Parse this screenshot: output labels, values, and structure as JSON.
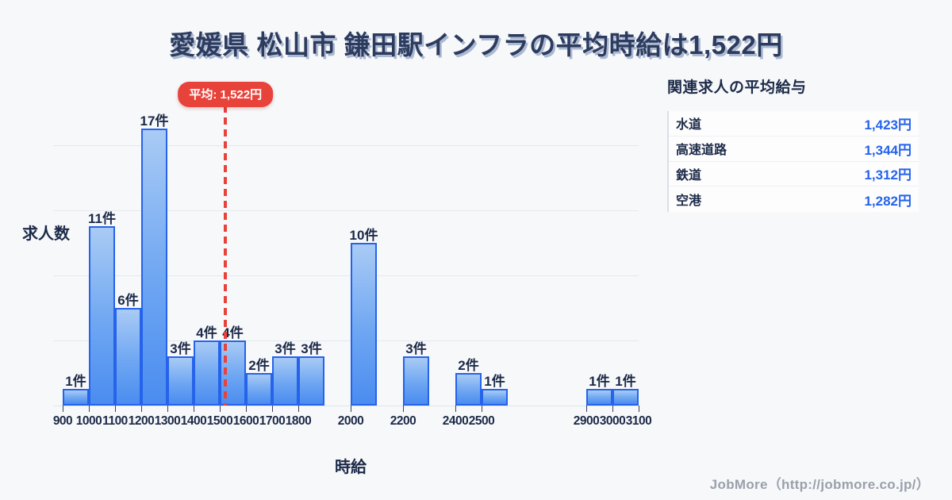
{
  "page": {
    "title": "愛媛県 松山市 鎌田駅インフラの平均時給は1,522円",
    "footer_credit": "JobMore（http://jobmore.co.jp/）"
  },
  "chart_data": {
    "type": "bar",
    "title": "愛媛県 松山市 鎌田駅インフラの平均時給は1,522円",
    "xlabel": "時給",
    "ylabel": "求人数",
    "x_range": [
      900,
      3100
    ],
    "ylim": [
      0,
      17.5
    ],
    "bin_width": 100,
    "grid": true,
    "gridline_values": [
      4,
      8,
      12,
      16
    ],
    "x_ticks": [
      900,
      1000,
      1100,
      1200,
      1300,
      1400,
      1500,
      1600,
      1700,
      1800,
      2000,
      2200,
      2400,
      2500,
      2900,
      3000,
      3100
    ],
    "bars": [
      {
        "bin_start": 900,
        "count": 1,
        "label": "1件"
      },
      {
        "bin_start": 1000,
        "count": 11,
        "label": "11件"
      },
      {
        "bin_start": 1100,
        "count": 6,
        "label": "6件"
      },
      {
        "bin_start": 1200,
        "count": 17,
        "label": "17件"
      },
      {
        "bin_start": 1300,
        "count": 3,
        "label": "3件"
      },
      {
        "bin_start": 1400,
        "count": 4,
        "label": "4件"
      },
      {
        "bin_start": 1500,
        "count": 4,
        "label": "4件"
      },
      {
        "bin_start": 1600,
        "count": 2,
        "label": "2件"
      },
      {
        "bin_start": 1700,
        "count": 3,
        "label": "3件"
      },
      {
        "bin_start": 1800,
        "count": 3,
        "label": "3件"
      },
      {
        "bin_start": 2000,
        "count": 10,
        "label": "10件"
      },
      {
        "bin_start": 2200,
        "count": 3,
        "label": "3件"
      },
      {
        "bin_start": 2400,
        "count": 2,
        "label": "2件"
      },
      {
        "bin_start": 2500,
        "count": 1,
        "label": "1件"
      },
      {
        "bin_start": 2900,
        "count": 1,
        "label": "1件"
      },
      {
        "bin_start": 3000,
        "count": 1,
        "label": "1件"
      }
    ],
    "average": {
      "value": 1522,
      "label": "平均: 1,522円"
    }
  },
  "side_panel": {
    "title": "関連求人の平均給与",
    "rows": [
      {
        "label": "水道",
        "value": "1,423円"
      },
      {
        "label": "高速道路",
        "value": "1,344円"
      },
      {
        "label": "鉄道",
        "value": "1,312円"
      },
      {
        "label": "空港",
        "value": "1,282円"
      }
    ]
  },
  "colors": {
    "page_bg": "#f7f8fa",
    "title_navy": "#2d3c5e",
    "text_dark": "#1c2a48",
    "bar_border": "#2563eb",
    "bar_fill_top": "#a9cbf5",
    "bar_fill_bottom": "#4a8cf0",
    "average_red": "#e8433b",
    "value_blue": "#2563eb",
    "gridline": "#e4e8f0",
    "footer_gray": "#9aa1ab"
  }
}
